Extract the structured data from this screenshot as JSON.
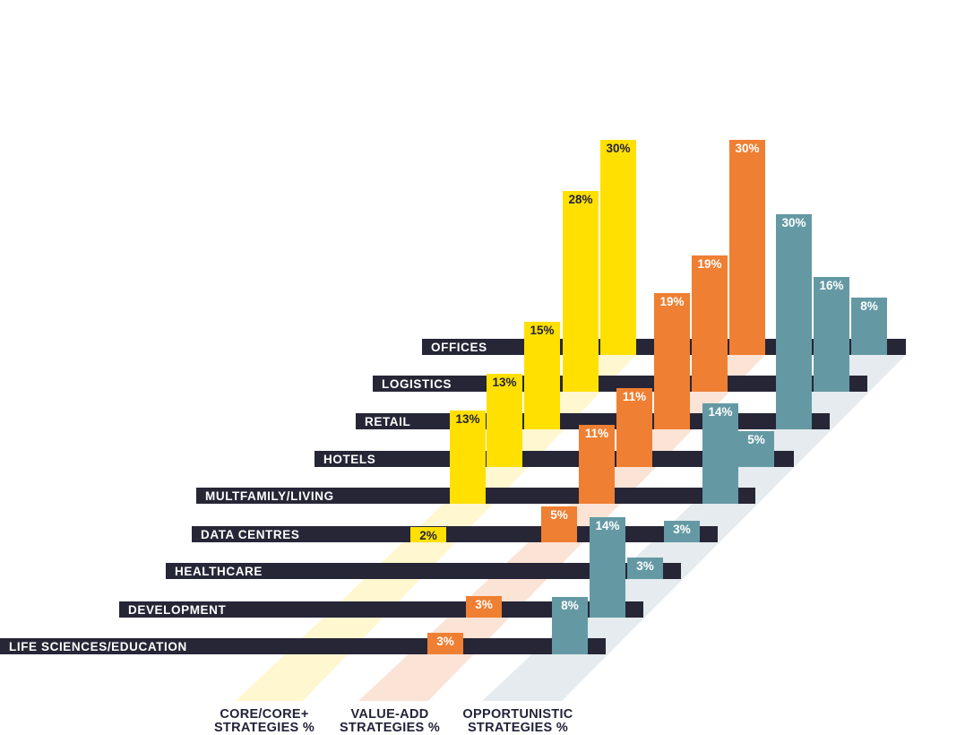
{
  "chart_data": {
    "type": "bar",
    "categories": [
      "OFFICES",
      "LOGISTICS",
      "RETAIL",
      "HOTELS",
      "MULTFAMILY/LIVING",
      "DATA CENTRES",
      "HEALTHCARE",
      "DEVELOPMENT",
      "LIFE SCIENCES/EDUCATION"
    ],
    "series": [
      {
        "name": "CORE/CORE+ STRATEGIES %",
        "color": "#ffe000",
        "label_color": "#23233a",
        "values": [
          30,
          28,
          15,
          13,
          13,
          2,
          null,
          null,
          null
        ],
        "labels": [
          "30%",
          "28%",
          "15%",
          "13%",
          "13%",
          "2%",
          "",
          "",
          ""
        ]
      },
      {
        "name": "VALUE-ADD STRATEGIES %",
        "color": "#ef7f32",
        "label_color": "#ffffff",
        "values": [
          30,
          19,
          19,
          11,
          11,
          5,
          null,
          3,
          3
        ],
        "labels": [
          "30%",
          "19%",
          "19%",
          "11%",
          "11%",
          "5%",
          "",
          "3%",
          "3%"
        ]
      },
      {
        "name": "OPPORTUNISTIC STRATEGIES %",
        "color": "#6499a4",
        "label_color": "#ffffff",
        "values": [
          8,
          16,
          30,
          5,
          14,
          3,
          3,
          14,
          8
        ],
        "labels": [
          "8%",
          "16%",
          "30%",
          "5%",
          "14%",
          "3%",
          "3%",
          "14%",
          "8%"
        ]
      }
    ],
    "ylim": [
      0,
      30
    ],
    "colors": {
      "track": "#262637",
      "shadow_core": "#fff7cf",
      "shadow_value": "#fbe3d6",
      "shadow_opp": "#e5ebee"
    }
  },
  "legend": {
    "core_line1": "CORE/CORE+",
    "core_line2": "STRATEGIES %",
    "value_line1": "VALUE-ADD",
    "value_line2": "STRATEGIES %",
    "opp_line1": "OPPORTUNISTIC",
    "opp_line2": "STRATEGIES %"
  }
}
